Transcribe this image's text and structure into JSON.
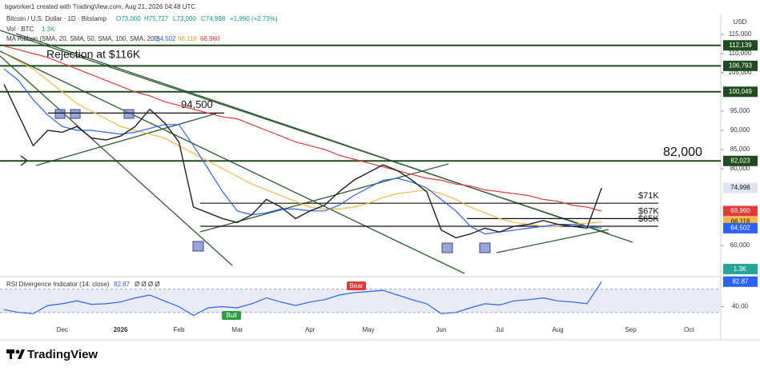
{
  "header": {
    "author": "bgworker1 created with TradingView.com, Aug 21, 2026 04:48 UTC",
    "currency": "USD",
    "symbol": "Bitcoin / U.S. Dollar · 1D · Bitstamp",
    "ohlc": [
      "O73,000",
      "H75,727",
      "L73,000",
      "C74,998",
      "+1,990 (+2.73%)"
    ],
    "volume_legend": "Vol · BTC",
    "volume_value": "1.3K",
    "ma_legend": "MA Ribbon (SMA, 20, SMA, 50, SMA, 100, SMA, 200)",
    "ma_values": [
      "64,502",
      "66,118",
      "68,960"
    ]
  },
  "chart_data": [
    {
      "type": "line",
      "categories": [
        null,
        null,
        null,
        null,
        "Dec",
        null,
        null,
        null,
        "2026",
        null,
        null,
        null,
        "Feb",
        null,
        null,
        null,
        "Mar",
        null,
        null,
        null,
        null,
        "Apr",
        null,
        null,
        null,
        "May",
        null,
        null,
        null,
        null,
        "Jun",
        null,
        null,
        null,
        "Jul",
        null,
        null,
        null,
        "Aug",
        null,
        null,
        null,
        null,
        "Sep",
        null,
        null,
        null,
        "Oct",
        null,
        null
      ],
      "series": [
        {
          "color": "#222222",
          "values": [
            102000,
            94000,
            86000,
            90000,
            89500,
            91000,
            88000,
            87500,
            88500,
            91000,
            95500,
            92000,
            87000,
            70000,
            68500,
            67000,
            66000,
            68000,
            72000,
            70000,
            67000,
            69000,
            70500,
            74000,
            77000,
            79000,
            81000,
            79500,
            77000,
            74000,
            64000,
            62000,
            63000,
            64500,
            63500,
            65000,
            65500,
            66500,
            65500,
            65000,
            64500,
            74998,
            null,
            null,
            null,
            null,
            null,
            null,
            null,
            null
          ]
        },
        {
          "color": "#2962ff",
          "values": [
            106000,
            103000,
            98000,
            94000,
            91000,
            90000,
            90000,
            89500,
            89000,
            89500,
            90500,
            91500,
            91500,
            86000,
            80000,
            74000,
            69000,
            68000,
            68500,
            69500,
            69500,
            69000,
            69000,
            70500,
            73000,
            75000,
            77000,
            77500,
            76500,
            75000,
            72000,
            69000,
            65000,
            63000,
            63500,
            64000,
            64500,
            65000,
            65500,
            65500,
            65000,
            64502,
            null,
            null,
            null,
            null,
            null,
            null,
            null,
            null
          ]
        },
        {
          "color": "#f5b841",
          "values": [
            110000,
            108000,
            106000,
            103000,
            100000,
            97000,
            95000,
            93000,
            91000,
            90000,
            89000,
            88000,
            86000,
            84000,
            82000,
            80000,
            78000,
            76000,
            74500,
            73000,
            71500,
            70000,
            69500,
            69500,
            70000,
            71000,
            72500,
            73500,
            74000,
            74500,
            73500,
            72000,
            70000,
            68500,
            67000,
            66000,
            65500,
            65000,
            65000,
            65500,
            65800,
            66118,
            null,
            null,
            null,
            null,
            null,
            null,
            null,
            null
          ]
        },
        {
          "color": "#e53935",
          "values": [
            112000,
            111000,
            110000,
            109000,
            107500,
            106000,
            104500,
            103000,
            101500,
            100000,
            99000,
            97500,
            96500,
            95500,
            94500,
            93500,
            93000,
            91500,
            90000,
            88500,
            87000,
            86000,
            85000,
            83500,
            82500,
            81500,
            80500,
            79500,
            78500,
            77500,
            77000,
            76000,
            75500,
            74500,
            74000,
            73500,
            73000,
            72000,
            71500,
            70500,
            70000,
            68960,
            null,
            null,
            null,
            null,
            null,
            null,
            null,
            null
          ]
        }
      ],
      "ylim": [
        52000,
        120000
      ],
      "yticks": [
        {
          "value": 115000,
          "label": "115,000"
        },
        {
          "value": 110000,
          "label": "110,000"
        },
        {
          "value": 105000,
          "label": "105,000"
        },
        {
          "value": 95000,
          "label": "95,000"
        },
        {
          "value": 90000,
          "label": "90,000"
        },
        {
          "value": 85000,
          "label": "85,000"
        },
        {
          "value": 80000,
          "label": "80,000"
        },
        {
          "value": 60000,
          "label": "60,000"
        }
      ],
      "grid": false,
      "price_tags": [
        {
          "value": 112139,
          "label": "112,139",
          "color": "#1f4d1f",
          "line": true
        },
        {
          "value": 106793,
          "label": "106,793",
          "color": "#1f4d1f",
          "line": true
        },
        {
          "value": 100049,
          "label": "100,049",
          "color": "#1f4d1f",
          "line": true
        },
        {
          "value": 82023,
          "label": "82,023",
          "color": "#1f4d1f",
          "line": true
        },
        {
          "value": 74998,
          "label": "74,998",
          "color": "#dce6f2",
          "line": false
        },
        {
          "value": 68960,
          "label": "68,960",
          "color": "#e53935",
          "line": false
        },
        {
          "value": 66118,
          "label": "66,118",
          "color": "#f5b841",
          "line": false
        },
        {
          "value": 64502,
          "label": "64,502",
          "color": "#2962ff",
          "line": false
        }
      ],
      "levels": [
        {
          "value": 94500,
          "label": "94,500"
        },
        {
          "value": 71000,
          "label": "$71K"
        },
        {
          "value": 67000,
          "label": "$67K"
        },
        {
          "value": 65000,
          "label": "$65K"
        }
      ],
      "annotations": [
        "Rejection at $116K",
        "82,000"
      ]
    },
    {
      "type": "line",
      "title": "RSI Divergence Indicator (14, close)",
      "value_label": "82.87",
      "markers": "Ø Ø Ø Ø",
      "series": [
        {
          "color": "#2962ff",
          "values": [
            35,
            30,
            28,
            42,
            45,
            50,
            44,
            45,
            48,
            55,
            60,
            50,
            40,
            25,
            38,
            40,
            38,
            45,
            55,
            48,
            42,
            48,
            52,
            60,
            64,
            66,
            68,
            60,
            52,
            45,
            28,
            30,
            38,
            45,
            43,
            50,
            52,
            55,
            50,
            48,
            45,
            82.87,
            null,
            null,
            null,
            null,
            null,
            null,
            null,
            null
          ]
        }
      ],
      "ylim": [
        -10,
        86
      ],
      "yticks": [
        {
          "value": 40,
          "label": "40.00"
        }
      ],
      "band": [
        30,
        70
      ],
      "bull_label": "Bull",
      "bear_label": "Bear"
    }
  ],
  "footer": {
    "brand": "TradingView"
  }
}
